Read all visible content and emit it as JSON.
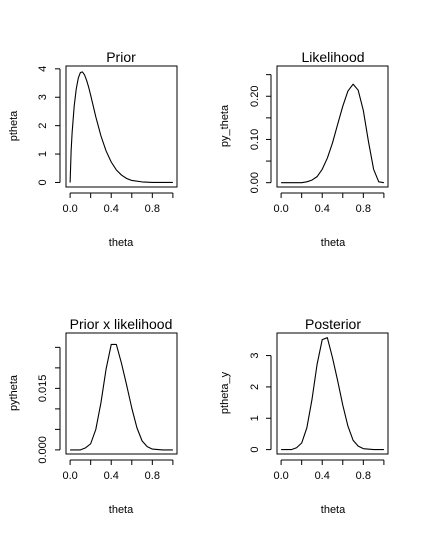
{
  "chart_data": [
    {
      "type": "line",
      "title": "Prior",
      "xlabel": "theta",
      "ylabel": "ptheta",
      "xlim": [
        -0.04,
        1.04
      ],
      "ylim": [
        -0.16,
        4.1
      ],
      "xticks": [
        0,
        0.2,
        0.4,
        0.6,
        0.8,
        1.0
      ],
      "xtick_labels": [
        "0.0",
        "",
        "0.4",
        "",
        "0.8",
        ""
      ],
      "yticks": [
        0,
        1,
        2,
        3,
        4
      ],
      "ytick_labels": [
        "0",
        "1",
        "2",
        "3",
        "4"
      ],
      "series": [
        {
          "x": [
            0,
            0.01,
            0.02,
            0.04,
            0.06,
            0.08,
            0.1,
            0.12,
            0.14,
            0.16,
            0.18,
            0.2,
            0.25,
            0.3,
            0.35,
            0.4,
            0.45,
            0.5,
            0.55,
            0.6,
            0.7,
            0.8,
            0.9,
            1.0
          ],
          "y": [
            0,
            1.13,
            1.78,
            2.7,
            3.3,
            3.68,
            3.87,
            3.89,
            3.79,
            3.6,
            3.36,
            3.07,
            2.31,
            1.64,
            1.11,
            0.72,
            0.44,
            0.26,
            0.14,
            0.07,
            0.02,
            0.0,
            0.0,
            0
          ]
        }
      ]
    },
    {
      "type": "line",
      "title": "Likelihood",
      "xlabel": "theta",
      "ylabel": "py_theta",
      "xlim": [
        -0.04,
        1.04
      ],
      "ylim": [
        -0.01,
        0.27
      ],
      "xticks": [
        0,
        0.2,
        0.4,
        0.6,
        0.8,
        1.0
      ],
      "xtick_labels": [
        "0.0",
        "",
        "0.4",
        "",
        "0.8",
        ""
      ],
      "yticks": [
        0,
        0.05,
        0.1,
        0.15,
        0.2,
        0.25
      ],
      "ytick_labels": [
        "0.00",
        "",
        "0.10",
        "",
        "0.20",
        ""
      ],
      "series": [
        {
          "x": [
            0,
            0.1,
            0.2,
            0.25,
            0.3,
            0.35,
            0.4,
            0.45,
            0.5,
            0.55,
            0.6,
            0.65,
            0.7,
            0.75,
            0.8,
            0.85,
            0.9,
            0.95,
            1.0
          ],
          "y": [
            0,
            0.0,
            0.0,
            0.002,
            0.006,
            0.014,
            0.031,
            0.057,
            0.092,
            0.135,
            0.177,
            0.212,
            0.228,
            0.214,
            0.167,
            0.095,
            0.031,
            0.002,
            0
          ]
        }
      ]
    },
    {
      "type": "line",
      "title": "Prior x likelihood",
      "xlabel": "theta",
      "ylabel": "pytheta",
      "xlim": [
        -0.04,
        1.04
      ],
      "ylim": [
        -0.001,
        0.0285
      ],
      "xticks": [
        0,
        0.2,
        0.4,
        0.6,
        0.8,
        1.0
      ],
      "xtick_labels": [
        "0.0",
        "",
        "0.4",
        "",
        "0.8",
        ""
      ],
      "yticks": [
        0,
        0.005,
        0.01,
        0.015,
        0.02,
        0.025
      ],
      "ytick_labels": [
        "0.000",
        "",
        "",
        "0.015",
        "",
        ""
      ],
      "series": [
        {
          "x": [
            0,
            0.1,
            0.15,
            0.2,
            0.25,
            0.3,
            0.35,
            0.4,
            0.45,
            0.5,
            0.55,
            0.6,
            0.65,
            0.7,
            0.75,
            0.8,
            0.9,
            1.0
          ],
          "y": [
            0,
            0.0,
            0.0005,
            0.0015,
            0.005,
            0.0115,
            0.0197,
            0.0257,
            0.0257,
            0.0211,
            0.0158,
            0.0102,
            0.0054,
            0.0022,
            0.0008,
            0.0002,
            0.0,
            0
          ]
        }
      ]
    },
    {
      "type": "line",
      "title": "Posterior",
      "xlabel": "theta",
      "ylabel": "ptheta_y",
      "xlim": [
        -0.04,
        1.04
      ],
      "ylim": [
        -0.14,
        3.72
      ],
      "xticks": [
        0,
        0.2,
        0.4,
        0.6,
        0.8,
        1.0
      ],
      "xtick_labels": [
        "0.0",
        "",
        "0.4",
        "",
        "0.8",
        ""
      ],
      "yticks": [
        0,
        1,
        2,
        3
      ],
      "ytick_labels": [
        "0",
        "1",
        "2",
        "3"
      ],
      "series": [
        {
          "x": [
            0,
            0.1,
            0.15,
            0.2,
            0.25,
            0.3,
            0.35,
            0.4,
            0.45,
            0.5,
            0.55,
            0.6,
            0.65,
            0.7,
            0.75,
            0.8,
            0.9,
            1.0
          ],
          "y": [
            0,
            0.0,
            0.06,
            0.21,
            0.69,
            1.59,
            2.72,
            3.51,
            3.57,
            2.93,
            2.2,
            1.42,
            0.75,
            0.3,
            0.11,
            0.03,
            0.0,
            0
          ]
        }
      ]
    }
  ]
}
